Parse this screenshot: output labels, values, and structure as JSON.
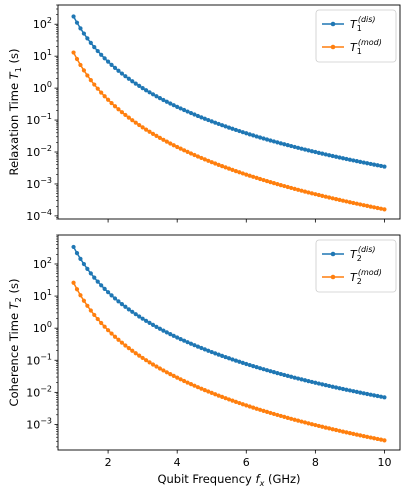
{
  "chart_data": [
    {
      "type": "line",
      "ylabel": "Relaxation Time",
      "ylabel_symbol": "T",
      "ylabel_sub": "1",
      "ylabel_unit": "(s)",
      "yscale": "log",
      "ylim": [
        8e-05,
        400
      ],
      "xlim": [
        0.55,
        10.45
      ],
      "yticks": [
        {
          "value": 100,
          "base": "10",
          "exp": "2"
        },
        {
          "value": 10,
          "base": "10",
          "exp": "1"
        },
        {
          "value": 1,
          "base": "10",
          "exp": "0"
        },
        {
          "value": 0.1,
          "base": "10",
          "exp": "−1"
        },
        {
          "value": 0.01,
          "base": "10",
          "exp": "−2"
        },
        {
          "value": 0.001,
          "base": "10",
          "exp": "−3"
        },
        {
          "value": 0.0001,
          "base": "10",
          "exp": "−4"
        }
      ],
      "legend_location": "top-right",
      "series": [
        {
          "name": "T1(dis)",
          "legend_sym": "T",
          "legend_sub": "1",
          "legend_sup": "(dis)",
          "color": "#1f77b4",
          "model": {
            "type": "power",
            "x0": 1.0,
            "y0": 175,
            "x1": 10.0,
            "y1": 0.0035
          }
        },
        {
          "name": "T1(mod)",
          "legend_sym": "T",
          "legend_sub": "1",
          "legend_sup": "(mod)",
          "color": "#ff7f0e",
          "model": {
            "type": "power",
            "x0": 1.0,
            "y0": 13,
            "x1": 10.0,
            "y1": 0.00016
          }
        }
      ]
    },
    {
      "type": "line",
      "xlabel": "Qubit Frequency",
      "xlabel_symbol": "f",
      "xlabel_sub": "x",
      "xlabel_unit": "(GHz)",
      "ylabel": "Coherence Time",
      "ylabel_symbol": "T",
      "ylabel_sub": "2",
      "ylabel_unit": "(s)",
      "yscale": "log",
      "ylim": [
        0.00016,
        800
      ],
      "xlim": [
        0.55,
        10.45
      ],
      "xticks": [
        2,
        4,
        6,
        8,
        10
      ],
      "xtick_labels": [
        "2",
        "4",
        "6",
        "8",
        "10"
      ],
      "yticks": [
        {
          "value": 100,
          "base": "10",
          "exp": "2"
        },
        {
          "value": 10,
          "base": "10",
          "exp": "1"
        },
        {
          "value": 1,
          "base": "10",
          "exp": "0"
        },
        {
          "value": 0.1,
          "base": "10",
          "exp": "−1"
        },
        {
          "value": 0.01,
          "base": "10",
          "exp": "−2"
        },
        {
          "value": 0.001,
          "base": "10",
          "exp": "−3"
        }
      ],
      "legend_location": "top-right",
      "series": [
        {
          "name": "T2(dis)",
          "legend_sym": "T",
          "legend_sub": "2",
          "legend_sup": "(dis)",
          "color": "#1f77b4",
          "model": {
            "type": "power",
            "x0": 1.0,
            "y0": 340,
            "x1": 10.0,
            "y1": 0.007
          }
        },
        {
          "name": "T2(mod)",
          "legend_sym": "T",
          "legend_sub": "2",
          "legend_sup": "(mod)",
          "color": "#ff7f0e",
          "model": {
            "type": "power",
            "x0": 1.0,
            "y0": 26,
            "x1": 10.0,
            "y1": 0.00032
          }
        }
      ]
    }
  ]
}
